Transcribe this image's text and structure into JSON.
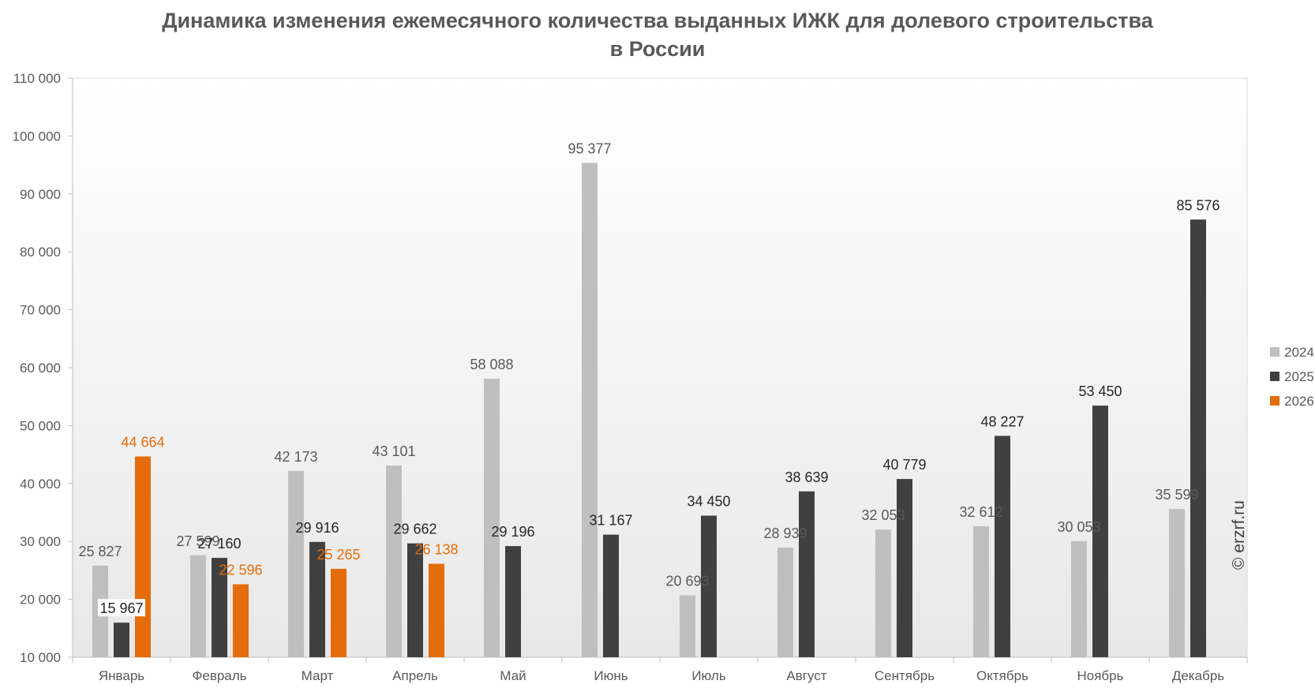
{
  "title_line1": "Динамика изменения ежемесячного количества выданных ИЖК для долевого строительства",
  "title_line2": "в России",
  "watermark": "© erzrf.ru",
  "chart_data": {
    "type": "bar",
    "title": "Динамика изменения ежемесячного количества выданных ИЖК для долевого строительства в России",
    "categories": [
      "Январь",
      "Февраль",
      "Март",
      "Апрель",
      "Май",
      "Июнь",
      "Июль",
      "Август",
      "Сентябрь",
      "Октябрь",
      "Ноябрь",
      "Декабрь"
    ],
    "series": [
      {
        "name": "2024",
        "color": "#bfbfbf",
        "label_color": "#595959",
        "values": [
          25827,
          27599,
          42173,
          43101,
          58088,
          95377,
          20693,
          28939,
          32053,
          32612,
          30053,
          35599
        ],
        "labels": [
          "25 827",
          "27 599",
          "42 173",
          "43 101",
          "58 088",
          "95 377",
          "20 693",
          "28 939",
          "32 053",
          "32 612",
          "30 053",
          "35 599"
        ]
      },
      {
        "name": "2025",
        "color": "#404040",
        "label_color": "#262626",
        "values": [
          15967,
          27160,
          29916,
          29662,
          29196,
          31167,
          34450,
          38639,
          40779,
          48227,
          53450,
          85576
        ],
        "labels": [
          "15 967",
          "27 160",
          "29 916",
          "29 662",
          "29 196",
          "31 167",
          "34 450",
          "38 639",
          "40 779",
          "48 227",
          "53 450",
          "85 576"
        ]
      },
      {
        "name": "2026",
        "color": "#e46c0a",
        "label_color": "#e46c0a",
        "values": [
          44664,
          22596,
          25265,
          26138,
          null,
          null,
          null,
          null,
          null,
          null,
          null,
          null
        ],
        "labels": [
          "44 664",
          "22 596",
          "25 265",
          "26 138",
          "",
          "",
          "",
          "",
          "",
          "",
          "",
          ""
        ]
      }
    ],
    "ylim": [
      10000,
      110000
    ],
    "yticks": [
      10000,
      20000,
      30000,
      40000,
      50000,
      60000,
      70000,
      80000,
      90000,
      100000,
      110000
    ],
    "ytick_labels": [
      "10 000",
      "20 000",
      "30 000",
      "40 000",
      "50 000",
      "60 000",
      "70 000",
      "80 000",
      "90 000",
      "100 000",
      "110 000"
    ],
    "xlabel": "",
    "ylabel": "",
    "grid": false,
    "legend": "right",
    "plot_background": "light gray vertical gradient"
  }
}
